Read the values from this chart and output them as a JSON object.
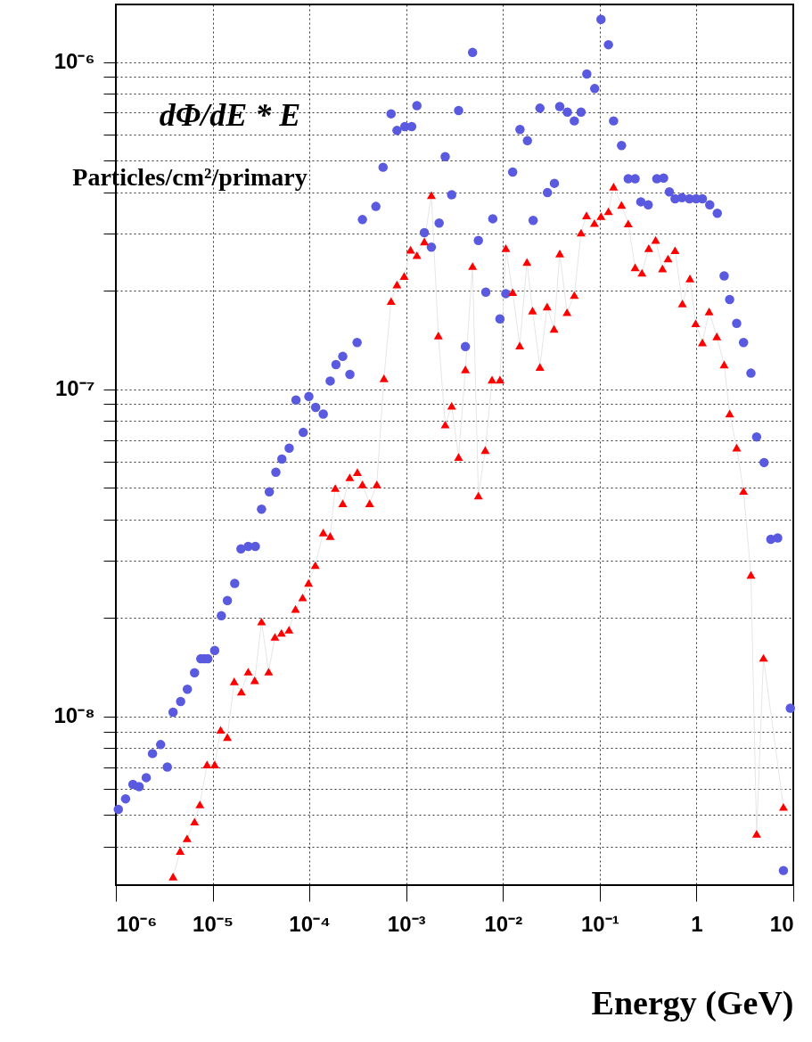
{
  "chart_data": {
    "type": "scatter",
    "xlabel": "Energy (GeV)",
    "annotations": [
      "dΦ/dE * E",
      "Particles/cm²/primary"
    ],
    "log": "xy",
    "grid": true,
    "xlim": [
      1e-06,
      10
    ],
    "ylim": [
      3.05e-09,
      1.5e-06
    ],
    "xticks": [
      {
        "value": 1e-06,
        "label": "10⁻⁶"
      },
      {
        "value": 1e-05,
        "label": "10⁻⁵"
      },
      {
        "value": 0.0001,
        "label": "10⁻⁴"
      },
      {
        "value": 0.001,
        "label": "10⁻³"
      },
      {
        "value": 0.01,
        "label": "10⁻²"
      },
      {
        "value": 0.1,
        "label": "10⁻¹"
      },
      1,
      10
    ],
    "yticks": [
      {
        "value": 4e-09,
        "label": null
      },
      {
        "value": 5e-09,
        "label": null
      },
      {
        "value": 6e-09,
        "label": null
      },
      {
        "value": 7e-09,
        "label": null
      },
      {
        "value": 8e-09,
        "label": null
      },
      {
        "value": 9e-09,
        "label": null
      },
      {
        "value": 1e-08,
        "label": "10⁻⁸"
      },
      {
        "value": 2e-08,
        "label": null
      },
      {
        "value": 3e-08,
        "label": null
      },
      {
        "value": 4e-08,
        "label": null
      },
      {
        "value": 5e-08,
        "label": null
      },
      {
        "value": 6e-08,
        "label": null
      },
      {
        "value": 7e-08,
        "label": null
      },
      {
        "value": 8e-08,
        "label": null
      },
      {
        "value": 9e-08,
        "label": null
      },
      {
        "value": 1e-07,
        "label": "10⁻⁷"
      },
      {
        "value": 2e-07,
        "label": null
      },
      {
        "value": 3e-07,
        "label": null
      },
      {
        "value": 4e-07,
        "label": null
      },
      {
        "value": 5e-07,
        "label": null
      },
      {
        "value": 6e-07,
        "label": null
      },
      {
        "value": 7e-07,
        "label": null
      },
      {
        "value": 8e-07,
        "label": null
      },
      {
        "value": 9e-07,
        "label": null
      },
      {
        "value": 1e-06,
        "label": "10⁻⁶"
      }
    ],
    "series": [
      {
        "type": "line",
        "color": "#e6e6e6",
        "marker": "none",
        "x": [
          3.9e-06,
          4.62e-06,
          5.44e-06,
          6.5e-06,
          7.38e-06,
          8.75e-06,
          1.05e-05,
          1.21e-05,
          1.42e-05,
          1.67e-05,
          1.98e-05,
          2.33e-05,
          2.72e-05,
          3.2e-05,
          3.79e-05,
          4.4e-05,
          5.14e-05,
          6.15e-05,
          7.18e-05,
          8.51e-05,
          9.79e-05,
          0.000115,
          0.000139,
          0.000164,
          0.000185,
          0.000221,
          0.000261,
          0.000313,
          0.000353,
          0.000419,
          0.000497,
          0.000589,
          0.000698,
          0.000803,
          0.000953,
          0.00111,
          0.00129,
          0.00154,
          0.00182,
          0.00215,
          0.00253,
          0.00295,
          0.00348,
          0.00409,
          0.00485,
          0.00557,
          0.00656,
          0.00771,
          0.00931,
          0.0107,
          0.0126,
          0.0149,
          0.0177,
          0.0202,
          0.0241,
          0.0286,
          0.0337,
          0.0386,
          0.0459,
          0.0546,
          0.0641,
          0.073,
          0.0881,
          0.103,
          0.123,
          0.139,
          0.168,
          0.197,
          0.232,
          0.273,
          0.321,
          0.378,
          0.445,
          0.508,
          0.6,
          0.714,
          0.855,
          0.979,
          1.15,
          1.35,
          1.62,
          1.93,
          2.2,
          2.6,
          3.06,
          3.65,
          4.18,
          4.92,
          7.91
        ],
        "values": [
          3.24e-09,
          3.88e-09,
          4.24e-09,
          4.77e-09,
          5.38e-09,
          7.13e-09,
          7.13e-09,
          9.1e-09,
          8.65e-09,
          1.28e-08,
          1.19e-08,
          1.37e-08,
          1.29e-08,
          1.95e-08,
          1.37e-08,
          1.75e-08,
          1.8e-08,
          1.84e-08,
          2.13e-08,
          2.31e-08,
          2.56e-08,
          2.9e-08,
          3.65e-08,
          3.56e-08,
          4.99e-08,
          4.48e-08,
          5.38e-08,
          5.58e-08,
          5.12e-08,
          4.48e-08,
          5.12e-08,
          1.08e-07,
          1.86e-07,
          2.09e-07,
          2.22e-07,
          2.67e-07,
          2.57e-07,
          2.83e-07,
          3.92e-07,
          1.46e-07,
          7.8e-08,
          8.9e-08,
          6.21e-08,
          1.15e-07,
          2.38e-07,
          4.73e-08,
          6.52e-08,
          1.07e-07,
          1.07e-07,
          2.7e-07,
          1.98e-07,
          1.36e-07,
          2.45e-07,
          1.74e-07,
          1.17e-07,
          1.79e-07,
          1.53e-07,
          2.6e-07,
          1.72e-07,
          1.94e-07,
          3.01e-07,
          3.4e-07,
          3.22e-07,
          3.38e-07,
          3.5e-07,
          4.16e-07,
          3.66e-07,
          3.21e-07,
          2.36e-07,
          2.27e-07,
          2.7e-07,
          2.86e-07,
          2.34e-07,
          2.51e-07,
          2.66e-07,
          1.83e-07,
          2.18e-07,
          1.59e-07,
          1.39e-07,
          1.73e-07,
          1.45e-07,
          1.19e-07,
          8.43e-08,
          6.63e-08,
          4.89e-08,
          2.71e-08,
          4.38e-09,
          1.51e-08,
          5.29e-09
        ]
      },
      {
        "color": "#5a5ae0",
        "marker": "circle",
        "x": [
          1.06e-06,
          1.26e-06,
          1.5e-06,
          1.74e-06,
          2.06e-06,
          2.39e-06,
          2.9e-06,
          3.4e-06,
          3.9e-06,
          4.67e-06,
          5.48e-06,
          6.5e-06,
          7.54e-06,
          8.2e-06,
          8.93e-06,
          1.05e-05,
          1.23e-05,
          1.42e-05,
          1.69e-05,
          1.96e-05,
          2.33e-05,
          2.76e-05,
          3.2e-05,
          3.85e-05,
          4.5e-05,
          5.19e-05,
          6.18e-05,
          7.26e-05,
          8.63e-05,
          9.87e-05,
          0.000116,
          0.000139,
          0.000164,
          0.000188,
          0.000221,
          0.000262,
          0.000311,
          0.000353,
          0.000486,
          0.000577,
          0.000698,
          0.000803,
          0.000968,
          0.00114,
          0.00129,
          0.00154,
          0.00182,
          0.00219,
          0.00253,
          0.00295,
          0.00348,
          0.00409,
          0.00485,
          0.00557,
          0.00665,
          0.00785,
          0.00931,
          0.0107,
          0.0126,
          0.015,
          0.0179,
          0.0205,
          0.0241,
          0.0288,
          0.034,
          0.0386,
          0.0463,
          0.0546,
          0.0641,
          0.0735,
          0.0887,
          0.103,
          0.123,
          0.139,
          0.168,
          0.197,
          0.232,
          0.266,
          0.317,
          0.389,
          0.457,
          0.524,
          0.6,
          0.706,
          0.844,
          0.991,
          1.15,
          1.37,
          1.64,
          1.93,
          2.2,
          2.6,
          3.06,
          3.65,
          4.18,
          4.99,
          5.86,
          6.9,
          7.91,
          9.33
        ],
        "values": [
          5.2e-09,
          5.6e-09,
          6.2e-09,
          6.1e-09,
          6.5e-09,
          7.7e-09,
          8.2e-09,
          7e-09,
          1.03e-08,
          1.11e-08,
          1.21e-08,
          1.36e-08,
          1.5e-08,
          1.5e-08,
          1.5e-08,
          1.59e-08,
          2.03e-08,
          2.26e-08,
          2.55e-08,
          3.25e-08,
          3.31e-08,
          3.31e-08,
          4.3e-08,
          4.86e-08,
          5.58e-08,
          6.12e-08,
          6.61e-08,
          9.27e-08,
          7.38e-08,
          9.5e-08,
          8.8e-08,
          8.4e-08,
          1.06e-07,
          1.19e-07,
          1.26e-07,
          1.11e-07,
          1.39e-07,
          3.3e-07,
          3.62e-07,
          4.77e-07,
          6.95e-07,
          6.18e-07,
          6.35e-07,
          6.35e-07,
          7.36e-07,
          3.01e-07,
          2.72e-07,
          3.22e-07,
          5.14e-07,
          3.93e-07,
          7.11e-07,
          1.35e-07,
          1.07e-06,
          2.85e-07,
          1.98e-07,
          3.32e-07,
          1.64e-07,
          1.96e-07,
          4.61e-07,
          6.22e-07,
          5.75e-07,
          3.28e-07,
          7.23e-07,
          3.99e-07,
          4.26e-07,
          7.31e-07,
          7.03e-07,
          6.61e-07,
          7.03e-07,
          9.2e-07,
          8.3e-07,
          1.35e-06,
          1.13e-06,
          6.61e-07,
          5.56e-07,
          4.4e-07,
          4.4e-07,
          3.74e-07,
          3.66e-07,
          4.4e-07,
          4.42e-07,
          4.01e-07,
          3.82e-07,
          3.85e-07,
          3.82e-07,
          3.82e-07,
          3.82e-07,
          3.66e-07,
          3.45e-07,
          2.22e-07,
          1.88e-07,
          1.59e-07,
          1.39e-07,
          1.12e-07,
          7.15e-08,
          5.97e-08,
          3.48e-08,
          3.51e-08,
          3.38e-09,
          1.06e-08
        ]
      },
      {
        "color": "#ff0000",
        "marker": "triangle",
        "x": [
          3.9e-06,
          4.62e-06,
          5.44e-06,
          6.5e-06,
          7.38e-06,
          8.75e-06,
          1.05e-05,
          1.21e-05,
          1.42e-05,
          1.67e-05,
          1.98e-05,
          2.33e-05,
          2.72e-05,
          3.2e-05,
          3.79e-05,
          4.4e-05,
          5.14e-05,
          6.15e-05,
          7.18e-05,
          8.51e-05,
          9.79e-05,
          0.000115,
          0.000139,
          0.000164,
          0.000185,
          0.000221,
          0.000261,
          0.000313,
          0.000353,
          0.000419,
          0.000497,
          0.000589,
          0.000698,
          0.000803,
          0.000953,
          0.00111,
          0.00129,
          0.00154,
          0.00182,
          0.00215,
          0.00253,
          0.00295,
          0.00348,
          0.00409,
          0.00485,
          0.00557,
          0.00656,
          0.00771,
          0.00931,
          0.0107,
          0.0126,
          0.0149,
          0.0177,
          0.0202,
          0.0241,
          0.0286,
          0.0337,
          0.0386,
          0.0459,
          0.0546,
          0.0641,
          0.073,
          0.0881,
          0.103,
          0.123,
          0.139,
          0.168,
          0.197,
          0.232,
          0.273,
          0.321,
          0.378,
          0.445,
          0.508,
          0.6,
          0.714,
          0.855,
          0.979,
          1.15,
          1.35,
          1.62,
          1.93,
          2.2,
          2.6,
          3.06,
          3.65,
          4.18,
          4.92,
          7.91
        ],
        "values": [
          3.24e-09,
          3.88e-09,
          4.24e-09,
          4.77e-09,
          5.38e-09,
          7.13e-09,
          7.13e-09,
          9.1e-09,
          8.65e-09,
          1.28e-08,
          1.19e-08,
          1.37e-08,
          1.29e-08,
          1.95e-08,
          1.37e-08,
          1.75e-08,
          1.8e-08,
          1.84e-08,
          2.13e-08,
          2.31e-08,
          2.56e-08,
          2.9e-08,
          3.65e-08,
          3.56e-08,
          4.99e-08,
          4.48e-08,
          5.38e-08,
          5.58e-08,
          5.12e-08,
          4.48e-08,
          5.12e-08,
          1.08e-07,
          1.86e-07,
          2.09e-07,
          2.22e-07,
          2.67e-07,
          2.57e-07,
          2.83e-07,
          3.92e-07,
          1.46e-07,
          7.8e-08,
          8.9e-08,
          6.21e-08,
          1.15e-07,
          2.38e-07,
          4.73e-08,
          6.52e-08,
          1.07e-07,
          1.07e-07,
          2.7e-07,
          1.98e-07,
          1.36e-07,
          2.45e-07,
          1.74e-07,
          1.17e-07,
          1.79e-07,
          1.53e-07,
          2.6e-07,
          1.72e-07,
          1.94e-07,
          3.01e-07,
          3.4e-07,
          3.22e-07,
          3.38e-07,
          3.5e-07,
          4.16e-07,
          3.66e-07,
          3.21e-07,
          2.36e-07,
          2.27e-07,
          2.7e-07,
          2.86e-07,
          2.34e-07,
          2.51e-07,
          2.66e-07,
          1.83e-07,
          2.18e-07,
          1.59e-07,
          1.39e-07,
          1.73e-07,
          1.45e-07,
          1.19e-07,
          8.43e-08,
          6.63e-08,
          4.89e-08,
          2.71e-08,
          4.38e-09,
          1.51e-08,
          5.29e-09
        ]
      }
    ]
  }
}
